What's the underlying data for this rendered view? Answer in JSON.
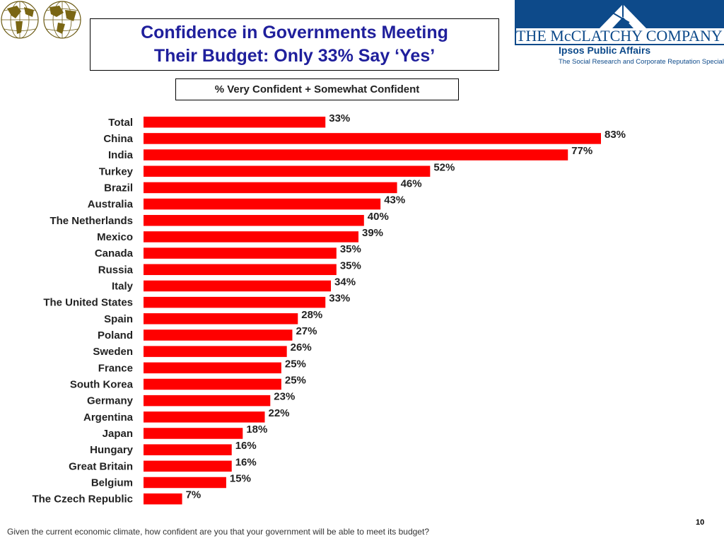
{
  "header": {
    "title_line1": "Confidence in Governments Meeting",
    "title_line2": "Their Budget: Only 33% Say ‘Yes’",
    "logo_company": "THE McCLATCHY COMPANY",
    "logo_ipsos": "Ipsos Public Affairs",
    "logo_tagline": "The Social Research and Corporate Reputation Specialists"
  },
  "subtitle": "% Very Confident + Somewhat Confident",
  "colors": {
    "bar": "#ff0000",
    "title": "#1f1f9c",
    "logo": "#0d4a8a"
  },
  "icons": {
    "globes": "world-globes-icon",
    "logo_mark": "house-roof-icon"
  },
  "chart_data": {
    "type": "bar",
    "orientation": "horizontal",
    "title": "Confidence in Governments Meeting Their Budget: Only 33% Say ‘Yes’",
    "subtitle": "% Very Confident + Somewhat Confident",
    "categories": [
      "Total",
      "China",
      "India",
      "Turkey",
      "Brazil",
      "Australia",
      "The Netherlands",
      "Mexico",
      "Canada",
      "Russia",
      "Italy",
      "The United States",
      "Spain",
      "Poland",
      "Sweden",
      "France",
      "South Korea",
      "Germany",
      "Argentina",
      "Japan",
      "Hungary",
      "Great Britain",
      "Belgium",
      "The Czech Republic"
    ],
    "values": [
      33,
      83,
      77,
      52,
      46,
      43,
      40,
      39,
      35,
      35,
      34,
      33,
      28,
      27,
      26,
      25,
      25,
      23,
      22,
      18,
      16,
      16,
      15,
      7
    ],
    "value_suffix": "%",
    "xlim": [
      0,
      83
    ],
    "grid": false,
    "legend": "none"
  },
  "footer": {
    "question": "Given the current economic climate, how confident are you that your government will be able to meet its budget?",
    "page": "10"
  }
}
